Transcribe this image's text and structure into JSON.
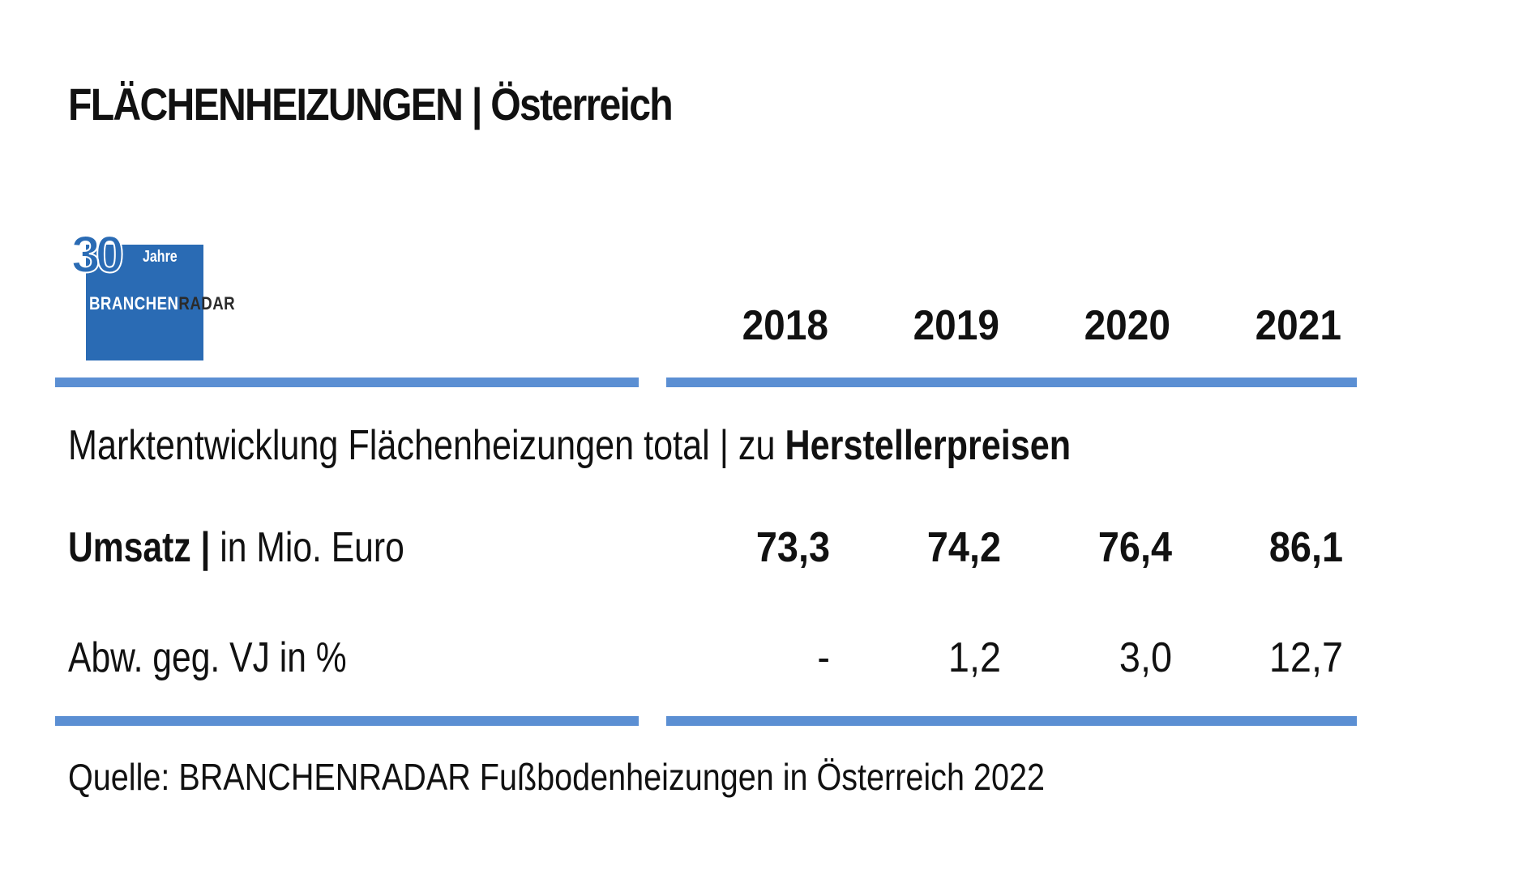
{
  "title": "FLÄCHENHEIZUNGEN | Österreich",
  "logo": {
    "number": "30",
    "jahre": "Jahre",
    "brand_part1": "BRANCHEN",
    "brand_part2": "RADAR",
    "colors": {
      "box": "#2a6bb4"
    }
  },
  "subtitle": {
    "prefix": "Marktentwicklung Flächenheizungen total | zu ",
    "emphasis": "Herstellerpreisen"
  },
  "rows": {
    "revenue": {
      "label_bold": "Umsatz |",
      "label_rest": " in Mio. Euro"
    },
    "change": {
      "label": "Abw. geg. VJ in %"
    }
  },
  "source": "Quelle: BRANCHENRADAR Fußbodenheizungen in Österreich 2022",
  "accent_color": "#5b8fd3",
  "chart_data": {
    "type": "table",
    "columns": [
      "2018",
      "2019",
      "2020",
      "2021"
    ],
    "rows": [
      {
        "label": "Umsatz | in Mio. Euro",
        "values": [
          "73,3",
          "74,2",
          "76,4",
          "86,1"
        ]
      },
      {
        "label": "Abw. geg. VJ in %",
        "values": [
          "-",
          "1,2",
          "3,0",
          "12,7"
        ]
      }
    ]
  }
}
